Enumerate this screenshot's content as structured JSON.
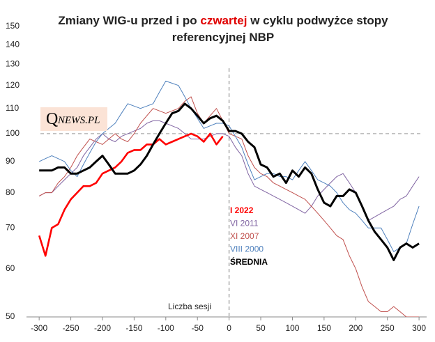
{
  "chart_data": {
    "type": "line",
    "title_parts": [
      "Zmiany WIG-u przed i po",
      "czwartej",
      "w cyklu podwyżce stopy referencyjnej NBP"
    ],
    "logo": {
      "initial": "Q",
      "text": "NEWS.PL"
    },
    "annotation": "Liczba sesji",
    "x": [
      -300,
      -290,
      -280,
      -270,
      -260,
      -250,
      -240,
      -230,
      -220,
      -210,
      -200,
      -190,
      -180,
      -170,
      -160,
      -150,
      -140,
      -130,
      -120,
      -110,
      -100,
      -90,
      -80,
      -70,
      -60,
      -50,
      -40,
      -30,
      -20,
      -10,
      0,
      10,
      20,
      30,
      40,
      50,
      60,
      70,
      80,
      90,
      100,
      110,
      120,
      130,
      140,
      150,
      160,
      170,
      180,
      190,
      200,
      210,
      220,
      230,
      240,
      250,
      260,
      270,
      280,
      290,
      300
    ],
    "series": [
      {
        "name": "I 2022",
        "color": "#ff0000",
        "width": 2.6,
        "bold": true,
        "values": [
          68,
          63,
          70,
          71,
          75,
          78,
          80,
          82,
          82,
          83,
          86,
          87,
          88,
          90,
          93,
          94,
          94,
          96,
          96,
          98,
          96,
          97,
          98,
          99,
          100,
          99,
          97,
          100,
          96,
          99,
          null,
          null,
          null,
          null,
          null,
          null,
          null,
          null,
          null,
          null,
          null,
          null,
          null,
          null,
          null,
          null,
          null,
          null,
          null,
          null,
          null,
          null,
          null,
          null,
          null,
          null,
          null,
          null,
          null,
          null,
          null
        ]
      },
      {
        "name": "VI 2011",
        "color": "#8064a2",
        "width": 1,
        "bold": false,
        "values": [
          79,
          80,
          80,
          82,
          84,
          86,
          88,
          92,
          95,
          98,
          100,
          98,
          97,
          99,
          100,
          101,
          102,
          104,
          105,
          105,
          104,
          103,
          102,
          100,
          98,
          98,
          98,
          99,
          100,
          100,
          99,
          95,
          92,
          86,
          82,
          81,
          80,
          79,
          78,
          77,
          76,
          75,
          74,
          76,
          79,
          81,
          83,
          85,
          86,
          83,
          80,
          76,
          72,
          73,
          74,
          75,
          76,
          78,
          79,
          82,
          85
        ]
      },
      {
        "name": "XI 2007",
        "color": "#c0504d",
        "width": 1,
        "bold": false,
        "values": [
          79,
          80,
          80,
          83,
          85,
          88,
          92,
          95,
          98,
          97,
          96,
          98,
          100,
          98,
          97,
          100,
          104,
          107,
          110,
          109,
          108,
          109,
          110,
          113,
          115,
          108,
          104,
          107,
          110,
          105,
          100,
          99,
          98,
          92,
          88,
          86,
          85,
          83,
          82,
          81,
          80,
          79,
          78,
          76,
          74,
          72,
          70,
          68,
          67,
          63,
          60,
          56,
          53,
          52,
          51,
          51,
          52,
          51,
          50,
          50,
          50
        ]
      },
      {
        "name": "VIII 2000",
        "color": "#4f81bd",
        "width": 1,
        "bold": false,
        "values": [
          90,
          91,
          92,
          91,
          90,
          87,
          85,
          89,
          93,
          97,
          100,
          102,
          104,
          108,
          112,
          111,
          110,
          111,
          112,
          117,
          122,
          121,
          120,
          115,
          110,
          106,
          102,
          103,
          104,
          104,
          103,
          99,
          95,
          89,
          84,
          85,
          86,
          86,
          85,
          85,
          84,
          87,
          90,
          87,
          84,
          83,
          82,
          80,
          77,
          75,
          74,
          72,
          70,
          70,
          70,
          67,
          64,
          65,
          66,
          71,
          76
        ]
      },
      {
        "name": "ŚREDNIA",
        "color": "#000000",
        "width": 3,
        "bold": true,
        "values": [
          87,
          87,
          87,
          88,
          88,
          86,
          86,
          87,
          88,
          90,
          92,
          89,
          86,
          86,
          86,
          87,
          89,
          92,
          96,
          100,
          104,
          108,
          109,
          112,
          110,
          107,
          104,
          106,
          107,
          105,
          101,
          101,
          100,
          97,
          95,
          89,
          88,
          85,
          86,
          83,
          87,
          85,
          88,
          86,
          81,
          77,
          76,
          79,
          79,
          81,
          80,
          76,
          72,
          69,
          67,
          65,
          62,
          65,
          66,
          65,
          66
        ]
      }
    ],
    "xlim": [
      -320,
      312
    ],
    "xticks": [
      -300,
      -250,
      -200,
      -150,
      -100,
      -50,
      0,
      50,
      100,
      150,
      200,
      250,
      300
    ],
    "ylim": [
      50,
      150
    ],
    "yticks": [
      50,
      60,
      70,
      80,
      90,
      100,
      110,
      120,
      130,
      140,
      150
    ],
    "log_y": true,
    "vline": 0,
    "hline": 100
  }
}
